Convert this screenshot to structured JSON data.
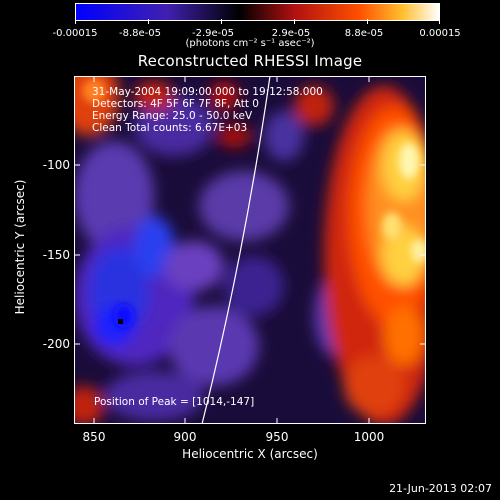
{
  "colorbar": {
    "ticks": [
      "-0.00015",
      "-8.8e-05",
      "-2.9e-05",
      "2.9e-05",
      "8.8e-05",
      "0.00015"
    ],
    "units": "(photons cm⁻² s⁻¹ asec⁻²)",
    "colors": [
      "#0000ff",
      "#3a1aa0",
      "#000000",
      "#a01010",
      "#ff4000",
      "#ffd040",
      "#ffffff"
    ]
  },
  "title": "Reconstructed RHESSI Image",
  "info": {
    "line1": "31-May-2004 19:09:00.000 to 19:12:58.000",
    "line2": "Detectors: 4F 5F 6F 7F 8F, Att 0",
    "line3": "Energy Range: 25.0 - 50.0 keV",
    "line4": "Clean    Total counts: 6.67E+03"
  },
  "peak_label": "Position of Peak = [1014,-147]",
  "axes": {
    "xlabel": "Heliocentric X (arcsec)",
    "ylabel": "Heliocentric Y (arcsec)",
    "xticks": [
      "850",
      "900",
      "950",
      "1000"
    ],
    "yticks": [
      "-100",
      "-150",
      "-200"
    ],
    "x_range": [
      840,
      1032
    ],
    "y_range": [
      -247,
      -55
    ]
  },
  "footer_date": "21-Jun-2013 02:07"
}
